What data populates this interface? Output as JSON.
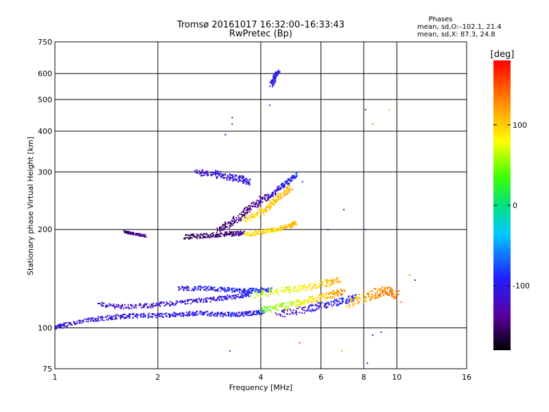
{
  "chart_data": {
    "type": "scatter",
    "title": "Tromsø 20161017 16:32:00–16:33:43",
    "subtitle": "RwPretec (Bp)",
    "xlabel": "Frequency [MHz]",
    "ylabel": "Stationary phase Virtual Height [km]",
    "xscale": "log",
    "yscale": "log",
    "xlim": [
      1,
      16
    ],
    "ylim": [
      75,
      750
    ],
    "x_ticks": [
      1,
      2,
      4,
      6,
      8,
      10,
      16
    ],
    "x_tick_labels": [
      "1",
      "2",
      "4",
      "6",
      "8",
      "10",
      "16"
    ],
    "y_ticks": [
      75,
      100,
      200,
      300,
      400,
      500,
      600,
      750
    ],
    "y_tick_labels": [
      "75",
      "100",
      "200",
      "300",
      "400",
      "500",
      "600",
      "750"
    ],
    "grid": true,
    "legend": {
      "title": "Phases",
      "lines": [
        "mean, sd,O:–102.1, 21.4",
        "mean, sd,X:  87.3, 24.8"
      ]
    },
    "colorbar": {
      "label": "[deg]",
      "ticks": [
        -100,
        0,
        100
      ],
      "tick_labels": [
        "-100",
        "0",
        "100"
      ],
      "range": [
        -180,
        180
      ]
    },
    "traces": [
      {
        "x": [
          1.0,
          1.1,
          1.3,
          1.5,
          1.7,
          2.0,
          2.3,
          2.6,
          3.0,
          3.4,
          3.8,
          4.1
        ],
        "y": [
          100,
          103,
          106,
          108,
          109,
          109,
          110,
          111,
          110,
          110,
          111,
          112
        ],
        "phase_start": -110,
        "phase_end": -95,
        "spread": 0.02
      },
      {
        "x": [
          1.35,
          1.6,
          1.9,
          2.2,
          2.6,
          3.0,
          3.4,
          3.8
        ],
        "y": [
          118,
          116,
          117,
          119,
          121,
          123,
          125,
          127
        ],
        "phase_start": -120,
        "phase_end": -100,
        "spread": 0.02
      },
      {
        "x": [
          2.3,
          2.7,
          3.1,
          3.5,
          3.9,
          4.3
        ],
        "y": [
          132,
          132,
          131,
          130,
          130,
          131
        ],
        "phase_start": -105,
        "phase_end": -85,
        "spread": 0.02
      },
      {
        "x": [
          4.0,
          4.6,
          5.2,
          5.8,
          6.4,
          7.0
        ],
        "y": [
          113,
          116,
          120,
          123,
          126,
          129
        ],
        "phase_start": 40,
        "phase_end": 130,
        "spread": 0.03
      },
      {
        "x": [
          3.8,
          4.6,
          5.4,
          6.2,
          6.8
        ],
        "y": [
          126,
          130,
          133,
          137,
          140
        ],
        "phase_start": 60,
        "phase_end": 120,
        "spread": 0.03
      },
      {
        "x": [
          4.5,
          5.4,
          6.2,
          7.0,
          7.6
        ],
        "y": [
          110,
          114,
          118,
          121,
          124
        ],
        "phase_start": -120,
        "phase_end": -80,
        "spread": 0.03
      },
      {
        "x": [
          7.2,
          8.0,
          8.8,
          9.4,
          10.0
        ],
        "y": [
          118,
          124,
          128,
          130,
          126
        ],
        "phase_start": 110,
        "phase_end": 140,
        "spread": 0.04
      },
      {
        "x": [
          1.6,
          1.7,
          1.85
        ],
        "y": [
          197,
          194,
          191
        ],
        "phase_start": -150,
        "phase_end": -140,
        "spread": 0.01
      },
      {
        "x": [
          2.4,
          2.7,
          3.0,
          3.3,
          3.6
        ],
        "y": [
          190,
          191,
          193,
          194,
          195
        ],
        "phase_start": -160,
        "phase_end": -140,
        "spread": 0.02
      },
      {
        "x": [
          3.0,
          3.3,
          3.6,
          3.9,
          4.2
        ],
        "y": [
          200,
          210,
          225,
          240,
          255
        ],
        "phase_start": -150,
        "phase_end": -135,
        "spread": 0.03
      },
      {
        "x": [
          3.6,
          4.0,
          4.4,
          4.8,
          5.1
        ],
        "y": [
          193,
          196,
          200,
          205,
          210
        ],
        "phase_start": 90,
        "phase_end": 110,
        "spread": 0.02
      },
      {
        "x": [
          3.6,
          4.0,
          4.3,
          4.6,
          4.9
        ],
        "y": [
          215,
          225,
          240,
          255,
          270
        ],
        "phase_start": 95,
        "phase_end": 110,
        "spread": 0.03
      },
      {
        "x": [
          2.6,
          2.9,
          3.2,
          3.5,
          3.7
        ],
        "y": [
          300,
          296,
          290,
          285,
          280
        ],
        "phase_start": -120,
        "phase_end": -100,
        "spread": 0.03
      },
      {
        "x": [
          4.2,
          4.5,
          4.8,
          5.1
        ],
        "y": [
          250,
          265,
          280,
          295
        ],
        "phase_start": -110,
        "phase_end": -90,
        "spread": 0.02
      },
      {
        "x": [
          4.3,
          4.4,
          4.5
        ],
        "y": [
          555,
          585,
          610
        ],
        "phase_start": -105,
        "phase_end": -95,
        "spread": 0.02
      }
    ],
    "extra_points": [
      {
        "x": 3.3,
        "y": 440,
        "phase": -140
      },
      {
        "x": 3.3,
        "y": 420,
        "phase": -120
      },
      {
        "x": 3.15,
        "y": 390,
        "phase": -130
      },
      {
        "x": 4.25,
        "y": 480,
        "phase": -120
      },
      {
        "x": 8.1,
        "y": 465,
        "phase": -130
      },
      {
        "x": 8.5,
        "y": 420,
        "phase": 130
      },
      {
        "x": 9.5,
        "y": 465,
        "phase": 110
      },
      {
        "x": 3.25,
        "y": 85,
        "phase": -120
      },
      {
        "x": 5.2,
        "y": 90,
        "phase": 160
      },
      {
        "x": 6.9,
        "y": 85,
        "phase": 120
      },
      {
        "x": 8.2,
        "y": 78,
        "phase": -120
      },
      {
        "x": 8.5,
        "y": 95,
        "phase": -110
      },
      {
        "x": 9.0,
        "y": 97,
        "phase": -100
      },
      {
        "x": 11.3,
        "y": 140,
        "phase": -120
      },
      {
        "x": 10.9,
        "y": 145,
        "phase": 130
      },
      {
        "x": 10.3,
        "y": 120,
        "phase": 150
      },
      {
        "x": 6.3,
        "y": 200,
        "phase": -110
      },
      {
        "x": 8.1,
        "y": 200,
        "phase": -100
      },
      {
        "x": 7.0,
        "y": 230,
        "phase": -120
      },
      {
        "x": 5.3,
        "y": 280,
        "phase": -100
      }
    ]
  }
}
